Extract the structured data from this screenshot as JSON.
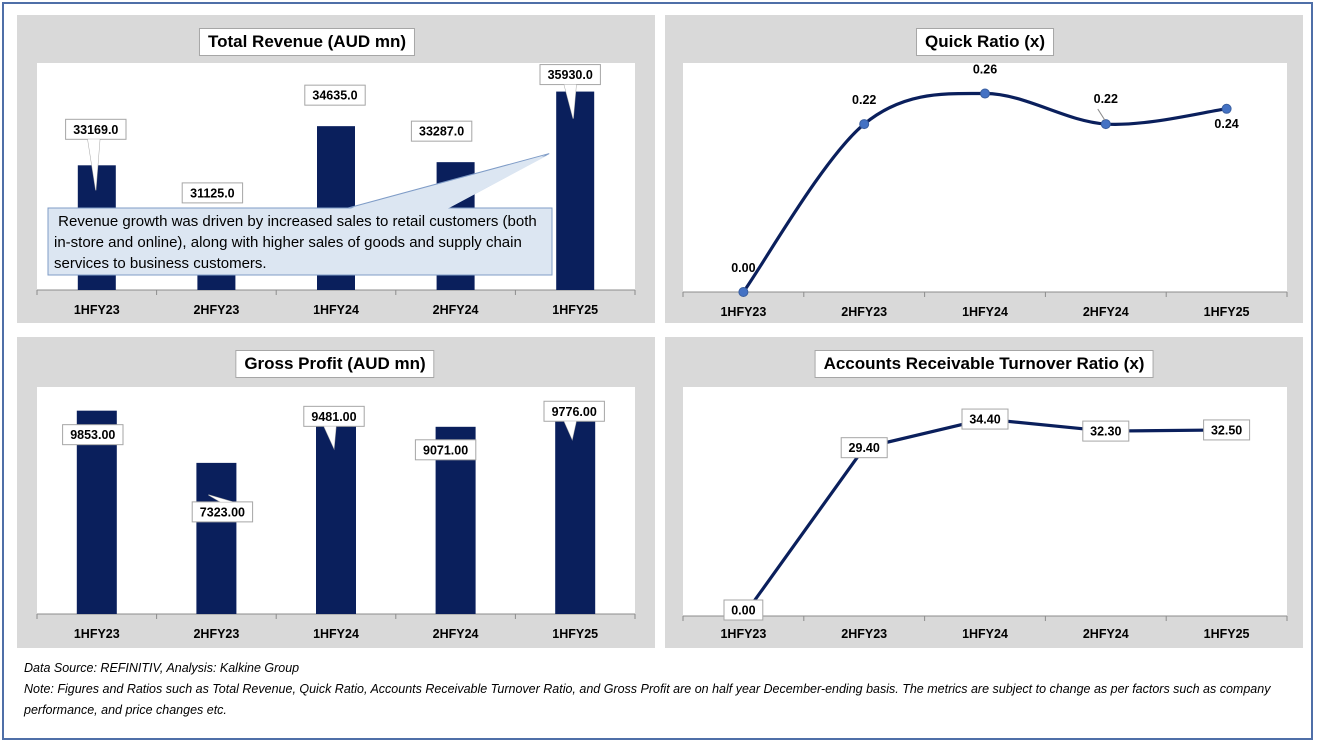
{
  "colors": {
    "bar": "#0a1f5c",
    "line": "#0a1f5c",
    "marker": "#4472c4",
    "panel": "#d9d9d9",
    "frame": "#4f6fa8",
    "callout": "#dce6f2"
  },
  "chart_data": [
    {
      "id": "revenue",
      "type": "bar",
      "title": "Total Revenue (AUD mn)",
      "categories": [
        "1HFY23",
        "2HFY23",
        "1HFY24",
        "2HFY24",
        "1HFY25"
      ],
      "values": [
        33169.0,
        31125.0,
        34635.0,
        33287.0,
        35930.0
      ],
      "data_labels": [
        "33169.0",
        "31125.0",
        "34635.0",
        "33287.0",
        "35930.0"
      ],
      "ylim": [
        28500,
        37000
      ],
      "grid": false,
      "annotation": " Revenue growth was driven by increased sales to retail customers (both in-store and online), along with higher sales of goods and supply chain services to business customers."
    },
    {
      "id": "quick",
      "type": "line",
      "title": "Quick Ratio (x)",
      "categories": [
        "1HFY23",
        "2HFY23",
        "1HFY24",
        "2HFY24",
        "1HFY25"
      ],
      "values": [
        0.0,
        0.22,
        0.26,
        0.22,
        0.24
      ],
      "data_labels": [
        "0.00",
        "0.22",
        "0.26",
        "0.22",
        "0.24"
      ],
      "ylim": [
        0,
        0.3
      ],
      "smooth": true,
      "grid": false
    },
    {
      "id": "gross",
      "type": "bar",
      "title": "Gross Profit (AUD mn)",
      "categories": [
        "1HFY23",
        "2HFY23",
        "1HFY24",
        "2HFY24",
        "1HFY25"
      ],
      "values": [
        9853.0,
        7323.0,
        9481.0,
        9071.0,
        9776.0
      ],
      "data_labels": [
        "9853.00",
        "7323.00",
        "9481.00",
        "9071.00",
        "9776.00"
      ],
      "ylim": [
        0,
        11000
      ],
      "grid": false
    },
    {
      "id": "art",
      "type": "line",
      "title": "Accounts Receivable Turnover Ratio (x)",
      "categories": [
        "1HFY23",
        "2HFY23",
        "1HFY24",
        "2HFY24",
        "1HFY25"
      ],
      "values": [
        0.0,
        29.4,
        34.4,
        32.3,
        32.5
      ],
      "data_labels": [
        "0.00",
        "29.40",
        "34.40",
        "32.30",
        "32.50"
      ],
      "ylim": [
        0,
        40
      ],
      "smooth": false,
      "grid": false
    }
  ],
  "footer": {
    "source": "Data Source: REFINITIV, Analysis: Kalkine Group",
    "note": "Note: Figures and Ratios such as Total Revenue, Quick Ratio, Accounts Receivable Turnover Ratio, and Gross Profit are on half year December-ending basis. The metrics are subject to change as per factors such as company performance, and price changes etc."
  }
}
